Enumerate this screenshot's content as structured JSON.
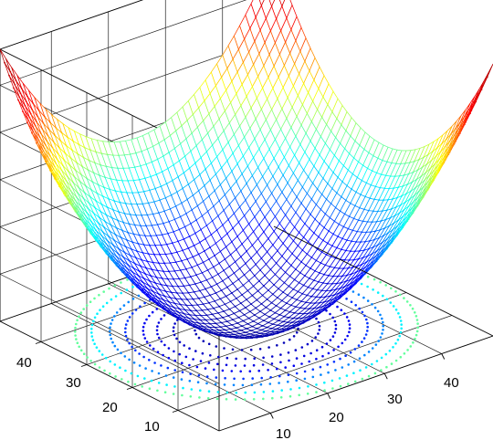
{
  "chart_data": {
    "type": "surface3d",
    "title": "",
    "xlabel": "",
    "ylabel": "",
    "zlabel": "",
    "function": "z = (x - 25)^2 + (y - 25)^2",
    "x_range": [
      1,
      49
    ],
    "y_range": [
      1,
      49
    ],
    "grid_step": 1,
    "z_range": [
      0,
      1152
    ],
    "contour_plane": "bottom",
    "contour_levels": [
      50,
      100,
      150,
      200,
      275,
      350,
      450,
      550
    ],
    "x_ticks": [
      10,
      20,
      30,
      40
    ],
    "y_ticks": [
      10,
      20,
      30,
      40
    ],
    "grid": true,
    "markers": "dots",
    "colormap": "jet",
    "colormap_stops": [
      "#0000a0",
      "#0000ff",
      "#00ffff",
      "#ffff00",
      "#ff0000",
      "#a00000"
    ]
  }
}
